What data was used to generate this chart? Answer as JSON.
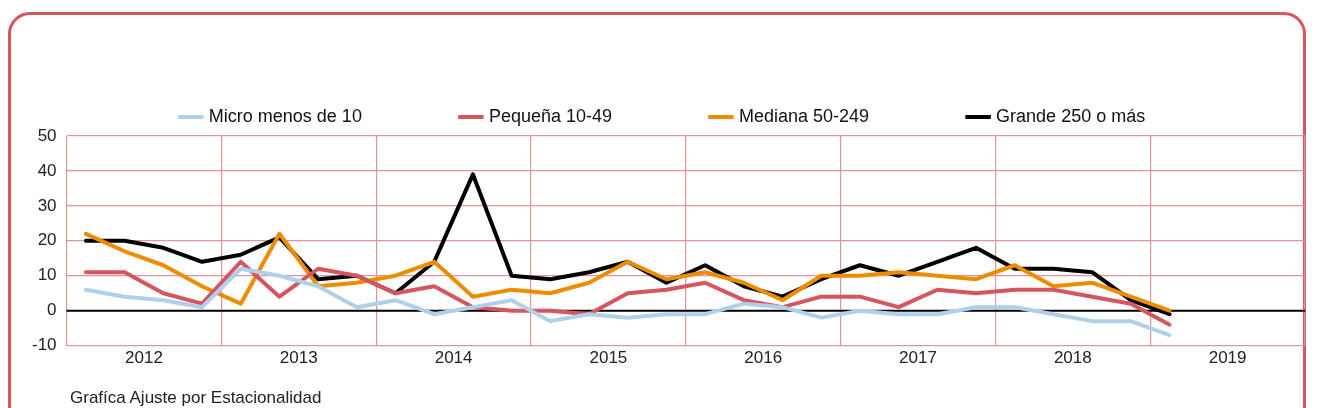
{
  "chart_data": {
    "type": "line",
    "x": [
      2012.125,
      2012.375,
      2012.625,
      2012.875,
      2013.125,
      2013.375,
      2013.625,
      2013.875,
      2014.125,
      2014.375,
      2014.625,
      2014.875,
      2015.125,
      2015.375,
      2015.625,
      2015.875,
      2016.125,
      2016.375,
      2016.625,
      2016.875,
      2017.125,
      2017.375,
      2017.625,
      2017.875,
      2018.125,
      2018.375,
      2018.625,
      2018.875,
      2019.125
    ],
    "series": [
      {
        "name": "Micro menos de 10",
        "color": "#aed0ea",
        "values": [
          6,
          4,
          3,
          1,
          12,
          10,
          7,
          1,
          3,
          -1,
          1,
          3,
          -3,
          -1,
          -2,
          -1,
          -1,
          2,
          1,
          -2,
          0,
          -1,
          -1,
          1,
          1,
          -1,
          -3,
          -3,
          -7
        ]
      },
      {
        "name": "Pequeña 10-49",
        "color": "#d5565e",
        "values": [
          11,
          11,
          5,
          2,
          14,
          4,
          12,
          10,
          5,
          7,
          1,
          0,
          0,
          -1,
          5,
          6,
          8,
          3,
          1,
          4,
          4,
          1,
          6,
          5,
          6,
          6,
          4,
          2,
          -4
        ]
      },
      {
        "name": "Mediana 50-249",
        "color": "#ee8c00",
        "values": [
          22,
          17,
          13,
          7,
          2,
          22,
          7,
          8,
          10,
          14,
          4,
          6,
          5,
          8,
          14,
          9,
          11,
          8,
          3,
          10,
          10,
          11,
          10,
          9,
          13,
          7,
          8,
          4,
          0
        ]
      },
      {
        "name": "Grande 250 o más",
        "color": "#000000",
        "values": [
          20,
          20,
          18,
          14,
          16,
          21,
          9,
          10,
          5,
          14,
          39,
          10,
          9,
          11,
          14,
          8,
          13,
          7,
          4,
          9,
          13,
          10,
          14,
          18,
          12,
          12,
          11,
          3,
          -1
        ]
      }
    ],
    "xlim": [
      2012,
      2020
    ],
    "xticks": [
      {
        "value": 2012,
        "label": null
      },
      {
        "value": 2012.5,
        "label": "2012"
      },
      {
        "value": 2013,
        "label": null
      },
      {
        "value": 2013.5,
        "label": "2013"
      },
      {
        "value": 2014,
        "label": null
      },
      {
        "value": 2014.5,
        "label": "2014"
      },
      {
        "value": 2015,
        "label": null
      },
      {
        "value": 2015.5,
        "label": "2015"
      },
      {
        "value": 2016,
        "label": null
      },
      {
        "value": 2016.5,
        "label": "2016"
      },
      {
        "value": 2017,
        "label": null
      },
      {
        "value": 2017.5,
        "label": "2017"
      },
      {
        "value": 2018,
        "label": null
      },
      {
        "value": 2018.5,
        "label": "2018"
      },
      {
        "value": 2019,
        "label": null
      },
      {
        "value": 2019.5,
        "label": "2019"
      },
      {
        "value": 2020,
        "label": null
      }
    ],
    "ylim": [
      -10,
      50
    ],
    "yticks": [
      -10,
      0,
      10,
      20,
      30,
      40,
      50
    ],
    "grid": true,
    "legend": "top",
    "marker": "none",
    "line_style": "solid",
    "ref_lines": [
      {
        "axis": "y",
        "value": 0,
        "color": "#000000"
      }
    ],
    "annotations": [
      "Grafíca Ajuste por Estacionalidad"
    ]
  }
}
